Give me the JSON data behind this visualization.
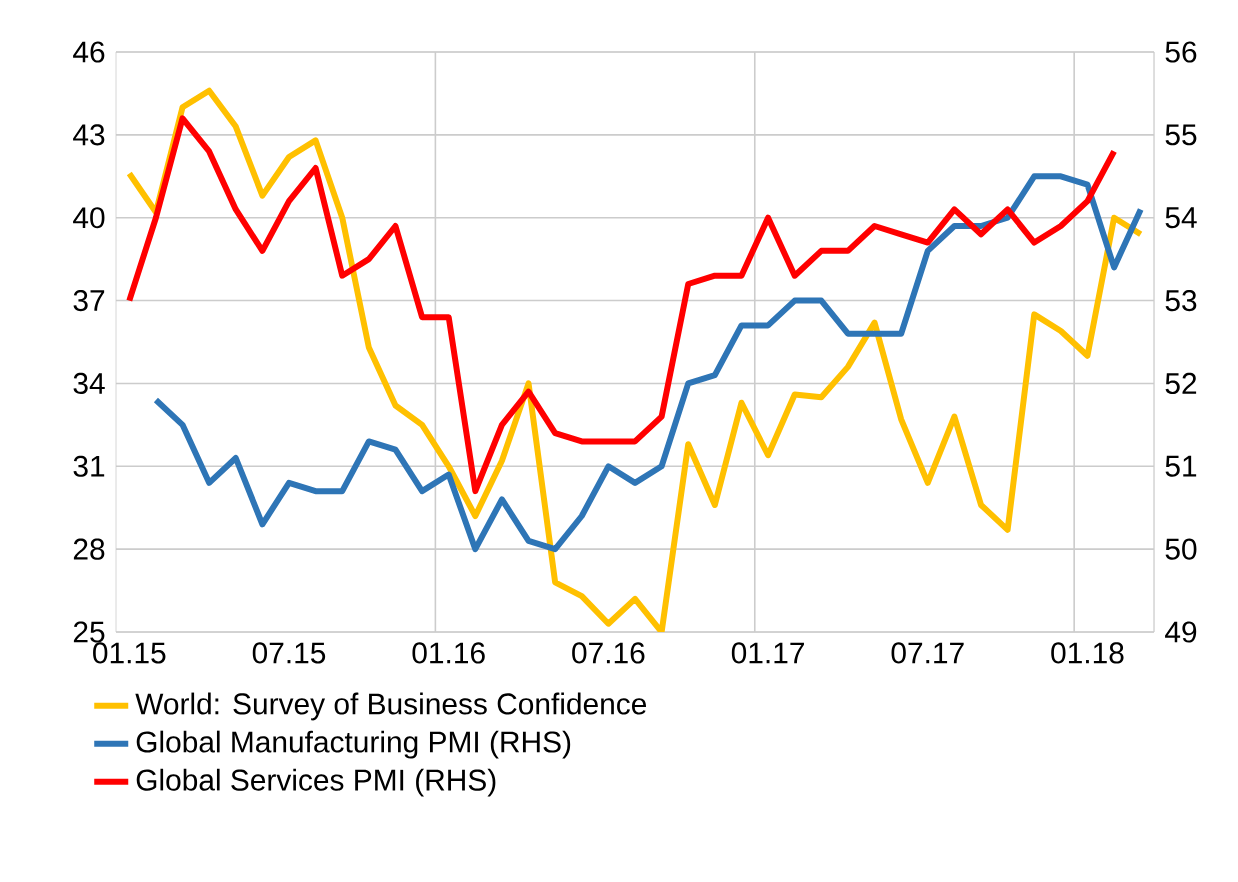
{
  "chart_data": {
    "type": "line",
    "categories": [
      "01.15",
      null,
      null,
      null,
      null,
      null,
      "07.15",
      null,
      null,
      null,
      null,
      null,
      "01.16",
      null,
      null,
      null,
      null,
      null,
      "07.16",
      null,
      null,
      null,
      null,
      null,
      "01.17",
      null,
      null,
      null,
      null,
      null,
      "07.17",
      null,
      null,
      null,
      null,
      null,
      "01.18",
      null,
      null
    ],
    "series": [
      {
        "name": "World: Survey of Business Confidence",
        "color": "#ffc000",
        "values": [
          41.6,
          40.2,
          44.0,
          44.6,
          43.3,
          40.8,
          42.2,
          42.8,
          40.0,
          35.3,
          33.2,
          32.5,
          31.0,
          29.2,
          31.2,
          34.0,
          26.8,
          26.3,
          25.3,
          26.2,
          25.0,
          31.8,
          29.6,
          33.3,
          31.4,
          33.6,
          33.5,
          34.6,
          36.2,
          32.7,
          30.4,
          32.8,
          29.6,
          28.7,
          36.5,
          35.9,
          35.0,
          40.0,
          39.4
        ]
      },
      {
        "name": "Global Manufacturing PMI (RHS)",
        "color": "#2e75b6",
        "axis": "y2",
        "values": [
          null,
          51.8,
          51.5,
          50.8,
          51.1,
          50.3,
          50.8,
          50.7,
          50.7,
          51.3,
          51.2,
          50.7,
          50.9,
          50.0,
          50.6,
          50.1,
          50.0,
          50.4,
          51.0,
          50.8,
          51.0,
          52.0,
          52.1,
          52.7,
          52.7,
          53.0,
          53.0,
          52.6,
          52.6,
          52.6,
          53.6,
          53.9,
          53.9,
          54.0,
          54.5,
          54.5,
          54.4,
          53.4,
          54.1
        ]
      },
      {
        "name": "Global Services PMI (RHS)",
        "color": "#ff0000",
        "axis": "y2",
        "values": [
          53.0,
          54.0,
          55.2,
          54.8,
          54.1,
          53.6,
          54.2,
          54.6,
          53.3,
          53.5,
          53.9,
          52.8,
          52.8,
          50.7,
          51.5,
          51.9,
          51.4,
          51.3,
          51.3,
          51.3,
          51.6,
          53.2,
          53.3,
          53.3,
          54.0,
          53.3,
          53.6,
          53.6,
          53.9,
          53.8,
          53.7,
          54.1,
          53.8,
          54.1,
          53.7,
          53.9,
          54.2,
          54.8,
          null
        ]
      }
    ],
    "ylim": [
      25,
      46
    ],
    "yticks": [
      25,
      28,
      31,
      34,
      37,
      40,
      43,
      46
    ],
    "y2lim": [
      49,
      56
    ],
    "y2ticks": [
      49,
      50,
      51,
      52,
      53,
      54,
      55,
      56
    ],
    "grid": true,
    "legend": "bottom",
    "marker": "none"
  }
}
